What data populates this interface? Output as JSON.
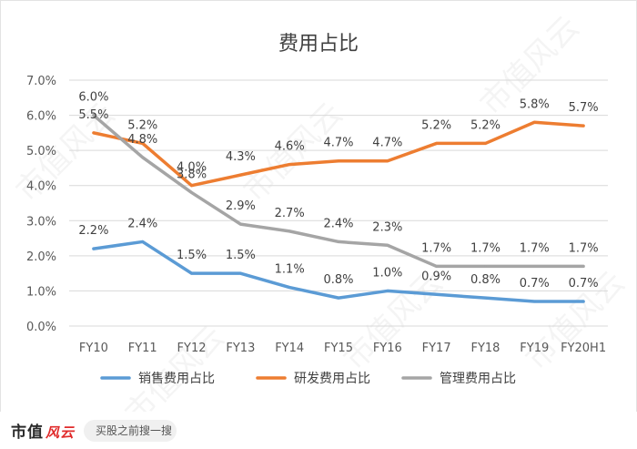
{
  "chart_data": {
    "type": "line",
    "title": "费用占比",
    "categories": [
      "FY10",
      "FY11",
      "FY12",
      "FY13",
      "FY14",
      "FY15",
      "FY16",
      "FY17",
      "FY18",
      "FY19",
      "FY20H1"
    ],
    "y_ticks": [
      "0.0%",
      "1.0%",
      "2.0%",
      "3.0%",
      "4.0%",
      "5.0%",
      "6.0%",
      "7.0%"
    ],
    "ylim": [
      0,
      7
    ],
    "grid": true,
    "legend_position": "bottom",
    "series": [
      {
        "name": "销售费用占比",
        "color": "#5b9bd5",
        "values": [
          2.2,
          2.4,
          1.5,
          1.5,
          1.1,
          0.8,
          1.0,
          0.9,
          0.8,
          0.7,
          0.7
        ],
        "labels": [
          "2.2%",
          "2.4%",
          "1.5%",
          "1.5%",
          "1.1%",
          "0.8%",
          "1.0%",
          "0.9%",
          "0.8%",
          "0.7%",
          "0.7%"
        ]
      },
      {
        "name": "研发费用占比",
        "color": "#ed7d31",
        "values": [
          5.5,
          5.2,
          4.0,
          4.3,
          4.6,
          4.7,
          4.7,
          5.2,
          5.2,
          5.8,
          5.7
        ],
        "labels": [
          "5.5%",
          "5.2%",
          "4.0%",
          "4.3%",
          "4.6%",
          "4.7%",
          "4.7%",
          "5.2%",
          "5.2%",
          "5.8%",
          "5.7%"
        ]
      },
      {
        "name": "管理费用占比",
        "color": "#a5a5a5",
        "values": [
          6.0,
          4.8,
          3.8,
          2.9,
          2.7,
          2.4,
          2.3,
          1.7,
          1.7,
          1.7,
          1.7
        ],
        "labels": [
          "6.0%",
          "4.8%",
          "3.8%",
          "2.9%",
          "2.7%",
          "2.4%",
          "2.3%",
          "1.7%",
          "1.7%",
          "1.7%",
          "1.7%"
        ]
      }
    ]
  },
  "watermark": "市值风云",
  "footer": {
    "brand": "市值",
    "brand_mark": "风云",
    "search_text": "买股之前搜一搜",
    "search_icon": "search-icon"
  }
}
